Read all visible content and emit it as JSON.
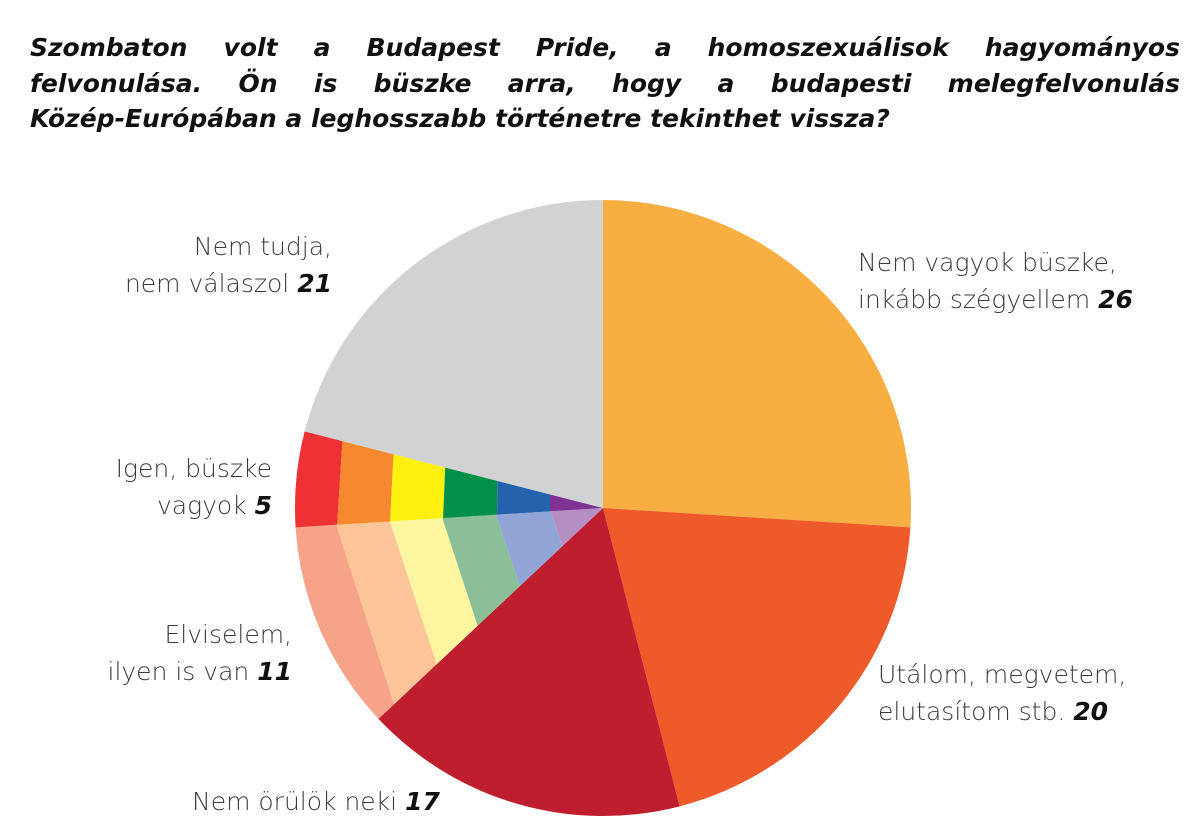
{
  "title_lines": [
    "Szombaton volt a Budapest Pride, a homoszexuálisok hagyományos",
    "felvonulása. Ön is büszke arra, hogy a budapesti melegfelvonulás",
    "Közép-Európában a leghosszabb történetre tekinthet vissza?"
  ],
  "chart_data": {
    "type": "pie",
    "start": "top",
    "direction": "clockwise",
    "slices": [
      {
        "label_lines": [
          "Nem vagyok büszke,",
          "inkább szégyellem"
        ],
        "value": 26,
        "color": "#F9AE42"
      },
      {
        "label_lines": [
          "Utálom, megvetem,",
          "elutasítom stb."
        ],
        "value": 20,
        "color": "#EF5A2A"
      },
      {
        "label_lines": [
          "Nem örülök neki"
        ],
        "value": 17,
        "color": "#BE1E2D"
      },
      {
        "label_lines": [
          "Elviselem,",
          "ilyen is van"
        ],
        "value": 11,
        "colors": [
          "#F6A38A",
          "#FBC597",
          "#FDF5A0",
          "#8BBF98",
          "#91A6D6",
          "#B58FC4"
        ]
      },
      {
        "label_lines": [
          "Igen, büszke",
          "vagyok"
        ],
        "value": 5,
        "colors": [
          "#EE3133",
          "#F6892F",
          "#FEF00F",
          "#00904A",
          "#2462AE",
          "#7F3194"
        ]
      },
      {
        "label_lines": [
          "Nem tudja,",
          "nem válaszol"
        ],
        "value": 21,
        "color": "#D1D2D4"
      }
    ]
  }
}
